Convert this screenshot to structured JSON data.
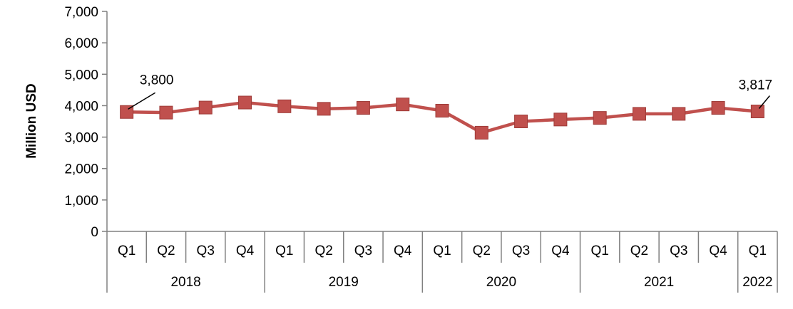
{
  "chart_data": {
    "type": "line",
    "title": "",
    "xlabel": "",
    "ylabel": "Million USD",
    "ylim": [
      0,
      7000
    ],
    "yticks": [
      0,
      1000,
      2000,
      3000,
      4000,
      5000,
      6000,
      7000
    ],
    "ytick_labels": [
      "0",
      "1,000",
      "2,000",
      "3,000",
      "4,000",
      "5,000",
      "6,000",
      "7,000"
    ],
    "categories": [
      "Q1",
      "Q2",
      "Q3",
      "Q4",
      "Q1",
      "Q2",
      "Q3",
      "Q4",
      "Q1",
      "Q2",
      "Q3",
      "Q4",
      "Q1",
      "Q2",
      "Q3",
      "Q4",
      "Q1"
    ],
    "groups": [
      {
        "label": "2018",
        "count": 4
      },
      {
        "label": "2019",
        "count": 4
      },
      {
        "label": "2020",
        "count": 4
      },
      {
        "label": "2021",
        "count": 4
      },
      {
        "label": "2022",
        "count": 1
      }
    ],
    "series": [
      {
        "values": [
          3800,
          3780,
          3940,
          4100,
          3980,
          3900,
          3930,
          4040,
          3840,
          3140,
          3500,
          3560,
          3610,
          3740,
          3740,
          3930,
          3817
        ]
      }
    ],
    "data_labels": [
      {
        "index": 0,
        "text": "3,800"
      },
      {
        "index": 16,
        "text": "3,817"
      }
    ],
    "colors": {
      "series": "#C0504D",
      "axis": "#808080",
      "text": "#000000"
    },
    "grid": false,
    "legend": "none"
  }
}
